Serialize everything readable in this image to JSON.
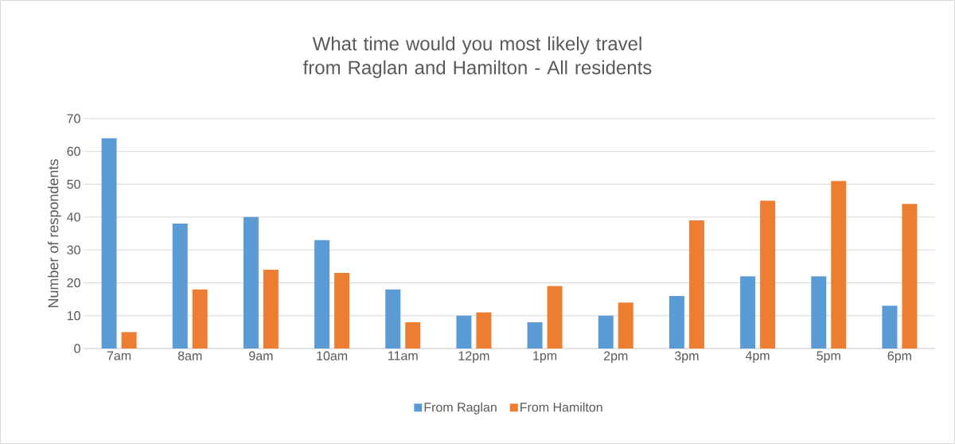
{
  "chart_data": {
    "type": "bar",
    "title": "What time would you most likely travel from Raglan and Hamilton - All residents",
    "ylabel": "Number of respondents",
    "categories": [
      "7am",
      "8am",
      "9am",
      "10am",
      "11am",
      "12pm",
      "1pm",
      "2pm",
      "3pm",
      "4pm",
      "5pm",
      "6pm"
    ],
    "series": [
      {
        "name": "From Raglan",
        "color": "#5b9bd5",
        "values": [
          64,
          38,
          40,
          33,
          18,
          10,
          8,
          10,
          16,
          22,
          22,
          13
        ]
      },
      {
        "name": "From Hamilton",
        "color": "#ed7d31",
        "values": [
          5,
          18,
          24,
          23,
          8,
          11,
          19,
          14,
          39,
          45,
          51,
          44
        ]
      }
    ],
    "ylim": [
      0,
      70
    ],
    "yticks": [
      0,
      10,
      20,
      30,
      40,
      50,
      60,
      70
    ],
    "grid": "y",
    "legend": "bottom"
  }
}
